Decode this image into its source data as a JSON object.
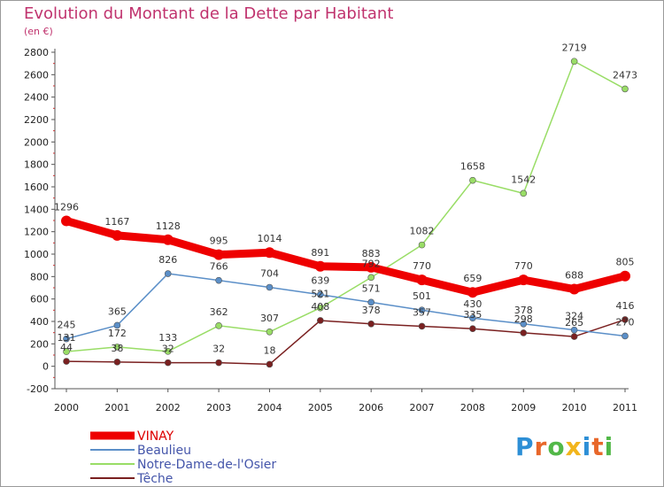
{
  "chart": {
    "title": "Evolution du Montant de la Dette par Habitant",
    "unit": "(en €)"
  },
  "logo": {
    "text": "Proxiti"
  },
  "chart_data": {
    "type": "line",
    "title": "Evolution du Montant de la Dette par Habitant",
    "subtitle": "(en €)",
    "x": [
      2000,
      2001,
      2002,
      2003,
      2004,
      2005,
      2006,
      2007,
      2008,
      2009,
      2010,
      2011
    ],
    "ylim": [
      -200,
      2800
    ],
    "yticks": [
      -200,
      0,
      200,
      400,
      600,
      800,
      1000,
      1200,
      1400,
      1600,
      1800,
      2000,
      2200,
      2400,
      2600,
      2800
    ],
    "grid": false,
    "legend": "bottom-left",
    "series": [
      {
        "name": "VINAY",
        "color": "#ee0000",
        "values": [
          1296,
          1167,
          1128,
          995,
          1014,
          891,
          883,
          770,
          659,
          770,
          688,
          805
        ]
      },
      {
        "name": "Beaulieu",
        "color": "#5b8fc8",
        "values": [
          245,
          365,
          826,
          766,
          704,
          639,
          571,
          501,
          430,
          378,
          324,
          270
        ]
      },
      {
        "name": "Notre-Dame-de-l'Osier",
        "color": "#99dd66",
        "values": [
          131,
          172,
          133,
          362,
          307,
          521,
          792,
          1082,
          1658,
          1542,
          2719,
          2473
        ]
      },
      {
        "name": "Têche",
        "color": "#7a2020",
        "values": [
          44,
          38,
          32,
          32,
          18,
          408,
          378,
          357,
          335,
          298,
          265,
          416
        ]
      }
    ]
  }
}
